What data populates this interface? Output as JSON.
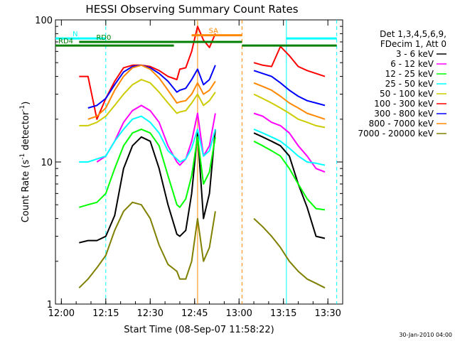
{
  "chart_data": {
    "type": "line",
    "title": "HESSI Observing Summary Count Rates",
    "xlabel": "Start Time (08-Sep-07 11:58:22)",
    "ylabel_main": "Count Rate (s",
    "ylabel_sup1": "-1",
    "ylabel_mid": " detector",
    "ylabel_sup2": "-1",
    "ylabel_end": ")",
    "y_scale": "log",
    "ylim": [
      1,
      100
    ],
    "xlim_minutes": [
      -2,
      95
    ],
    "x_ticks": [
      {
        "label": "12:00",
        "min": 0
      },
      {
        "label": "12:15",
        "min": 15
      },
      {
        "label": "12:30",
        "min": 30
      },
      {
        "label": "12:45",
        "min": 45
      },
      {
        "label": "13:00",
        "min": 60
      },
      {
        "label": "13:15",
        "min": 75
      },
      {
        "label": "13:30",
        "min": 90
      }
    ],
    "y_ticks": [
      {
        "label": "1",
        "value": 1
      },
      {
        "label": "10",
        "value": 10
      },
      {
        "label": "100",
        "value": 100
      }
    ],
    "legend_header": [
      "Det 1,3,4,5,6,9,",
      "FDecim 1, Att 0"
    ],
    "legend_position": "right",
    "series": [
      {
        "name": "3 - 6 keV",
        "color": "#000000",
        "values": [
          2.7,
          2.8,
          2.8,
          3.0,
          4.2,
          9.0,
          13.0,
          15.0,
          14.0,
          9.0,
          5.0,
          3.1,
          3.0,
          3.3,
          6.0,
          16.0,
          4.0,
          6.0,
          17.0,
          null,
          null,
          null,
          16.0,
          15.0,
          14.0,
          13.0,
          11.0,
          7.0,
          4.8,
          3.0,
          2.9
        ]
      },
      {
        "name": "6 - 12 keV",
        "color": "#ff00ff",
        "values": [
          null,
          null,
          10.0,
          11.0,
          14.0,
          19.0,
          23.0,
          25.0,
          23.0,
          19.0,
          13.0,
          10.0,
          9.5,
          10.5,
          14.0,
          22.0,
          11.0,
          13.0,
          22.0,
          null,
          null,
          null,
          22.0,
          21.0,
          19.0,
          18.0,
          16.0,
          13.0,
          11.0,
          9.0,
          8.5
        ]
      },
      {
        "name": "12 - 25 keV",
        "color": "#00ff00",
        "values": [
          4.8,
          5.0,
          5.2,
          6.0,
          9.0,
          13.0,
          16.0,
          17.0,
          16.0,
          13.0,
          8.0,
          5.0,
          4.8,
          5.5,
          8.0,
          15.0,
          7.0,
          8.5,
          15.0,
          null,
          null,
          null,
          14.0,
          13.0,
          12.0,
          11.0,
          9.0,
          7.0,
          5.5,
          4.7,
          4.6
        ]
      },
      {
        "name": "25 - 50 keV",
        "color": "#00ffff",
        "values": [
          10.0,
          10.0,
          10.5,
          11.0,
          14.0,
          17.0,
          20.0,
          21.0,
          19.0,
          16.0,
          12.0,
          10.5,
          10.0,
          10.5,
          12.5,
          17.0,
          11.0,
          12.0,
          17.0,
          null,
          null,
          null,
          17.0,
          16.0,
          15.0,
          14.0,
          12.5,
          11.0,
          10.0,
          9.8,
          9.5
        ]
      },
      {
        "name": "50 - 100 keV",
        "color": "#cccc00",
        "values": [
          18.0,
          18.0,
          19.0,
          21.0,
          25.0,
          30.0,
          35.0,
          38.0,
          36.0,
          31.0,
          26.0,
          22.0,
          22.5,
          23.0,
          26.0,
          30.0,
          25.0,
          27.0,
          31.0,
          null,
          null,
          null,
          30.0,
          28.0,
          26.0,
          24.0,
          22.0,
          20.0,
          19.0,
          18.0,
          17.5
        ]
      },
      {
        "name": "100 - 300 keV",
        "color": "#ff0000",
        "values": [
          40.0,
          40.0,
          20.0,
          28.0,
          37.0,
          46.0,
          48.0,
          48.0,
          47.0,
          44.0,
          40.0,
          38.0,
          45.0,
          46.0,
          60.0,
          90.0,
          72.0,
          64.0,
          80.0,
          null,
          null,
          null,
          50.0,
          48.0,
          47.0,
          65.0,
          56.0,
          47.0,
          44.0,
          42.0,
          40.0
        ]
      },
      {
        "name": "300 - 800 keV",
        "color": "#0000ff",
        "values": [
          null,
          24.0,
          25.0,
          28.0,
          35.0,
          43.0,
          47.0,
          48.0,
          46.0,
          42.0,
          37.0,
          31.0,
          32.0,
          33.0,
          38.0,
          45.0,
          35.0,
          38.0,
          48.0,
          null,
          null,
          null,
          44.0,
          42.0,
          40.0,
          36.0,
          32.0,
          29.0,
          27.0,
          26.0,
          25.0
        ]
      },
      {
        "name": "800 - 7000 keV",
        "color": "#ff8800",
        "values": [
          null,
          20.0,
          21.0,
          24.0,
          32.0,
          40.0,
          46.0,
          48.0,
          45.0,
          39.0,
          32.0,
          26.0,
          26.5,
          27.0,
          30.0,
          36.0,
          30.0,
          32.0,
          37.0,
          null,
          null,
          null,
          36.0,
          34.0,
          32.0,
          29.0,
          26.0,
          24.0,
          22.0,
          21.0,
          20.0
        ]
      },
      {
        "name": "7000 - 20000 keV",
        "color": "#808000",
        "values": [
          1.3,
          1.5,
          1.8,
          2.2,
          3.3,
          4.5,
          5.2,
          5.0,
          4.0,
          2.6,
          1.9,
          1.7,
          1.5,
          1.5,
          2.0,
          4.0,
          2.0,
          2.5,
          4.5,
          null,
          null,
          null,
          4.0,
          3.5,
          3.0,
          2.5,
          2.0,
          1.7,
          1.5,
          1.4,
          1.3
        ]
      }
    ],
    "x_minutes": [
      6,
      9,
      12,
      15,
      18,
      21,
      24,
      27,
      30,
      33,
      36,
      39,
      40,
      42,
      44,
      46,
      48,
      50,
      52,
      54,
      57,
      60,
      65,
      68,
      71,
      74,
      77,
      80,
      83,
      86,
      89
    ],
    "bars": [
      {
        "label": "N",
        "color": "#00ffff",
        "value": 74,
        "start_min": -2,
        "end_min": 15
      },
      {
        "label": "RD0",
        "color": "#008000",
        "value": 70,
        "start_min": 6,
        "end_min": 38
      },
      {
        "label": "RD4",
        "color": "#008000",
        "value": 66,
        "start_min": -2,
        "end_min": 38
      },
      {
        "label": "SA",
        "color": "#ff8800",
        "value": 78,
        "start_min": 44,
        "end_min": 61
      },
      {
        "label": "",
        "color": "#008000",
        "value": 70,
        "start_min": 38,
        "end_min": 61
      },
      {
        "label": "",
        "color": "#008000",
        "value": 66,
        "start_min": 61,
        "end_min": 93
      },
      {
        "label": "",
        "color": "#00ffff",
        "value": 74,
        "start_min": 76,
        "end_min": 93
      }
    ],
    "vlines": [
      {
        "min": 15,
        "color": "#00ffff",
        "style": "dashed"
      },
      {
        "min": 61,
        "color": "#ff8800",
        "style": "dashed"
      },
      {
        "min": 76,
        "color": "#00ffff",
        "style": "solid"
      },
      {
        "min": 93,
        "color": "#00ffff",
        "style": "dashed"
      },
      {
        "min": 46,
        "color": "#ff8800",
        "style": "solid"
      }
    ],
    "footer_date": "30-Jan-2010 04:00"
  }
}
